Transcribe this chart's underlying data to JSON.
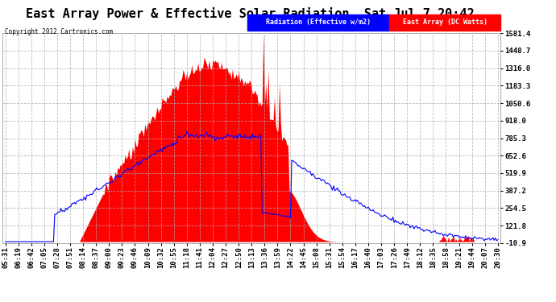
{
  "title": "East Array Power & Effective Solar Radiation  Sat Jul 7 20:42",
  "copyright": "Copyright 2012 Cartronics.com",
  "legend_labels": [
    "Radiation (Effective w/m2)",
    "East Array (DC Watts)"
  ],
  "yticks": [
    1581.4,
    1448.7,
    1316.0,
    1183.3,
    1050.6,
    918.0,
    785.3,
    652.6,
    519.9,
    387.2,
    254.5,
    121.8,
    -10.9
  ],
  "ymin": -10.9,
  "ymax": 1581.4,
  "bg_color": "#ffffff",
  "plot_bg_color": "#ffffff",
  "grid_color": "#aaaaaa",
  "fill_color": "#ff0000",
  "line_color": "#0000ff",
  "title_fontsize": 11,
  "tick_fontsize": 6.5,
  "x_labels": [
    "05:31",
    "06:19",
    "06:42",
    "07:05",
    "07:28",
    "07:51",
    "08:14",
    "08:37",
    "09:00",
    "09:23",
    "09:46",
    "10:09",
    "10:32",
    "10:55",
    "11:18",
    "11:41",
    "12:04",
    "12:27",
    "12:50",
    "13:13",
    "13:36",
    "13:59",
    "14:22",
    "14:45",
    "15:08",
    "15:31",
    "15:54",
    "16:17",
    "16:40",
    "17:03",
    "17:26",
    "17:49",
    "18:12",
    "18:35",
    "18:58",
    "19:21",
    "19:44",
    "20:07",
    "20:30"
  ]
}
